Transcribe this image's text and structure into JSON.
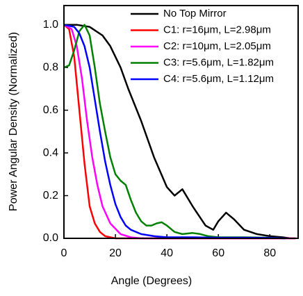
{
  "chart_data": {
    "type": "line",
    "xlabel": "Angle (Degrees)",
    "ylabel": "Power Angular Density (Normalized)",
    "xlim": [
      0,
      91
    ],
    "xticks": [
      0,
      20,
      40,
      60,
      80
    ],
    "ylim": [
      0,
      1.09
    ],
    "yticks": [
      {
        "value": 0,
        "label": "0.0"
      },
      0.2,
      0.4,
      0.6,
      0.8,
      {
        "value": 1,
        "label": "1.0"
      }
    ],
    "legend": "upper right",
    "series": [
      {
        "name": "No Top Mirror",
        "color": "#000000",
        "x": [
          0,
          5,
          10,
          15,
          18,
          22,
          25,
          30,
          35,
          40,
          43,
          46,
          50,
          55,
          58,
          60,
          63,
          66,
          70,
          75,
          80,
          85,
          88
        ],
        "values": [
          1.0,
          1.0,
          0.99,
          0.95,
          0.9,
          0.8,
          0.7,
          0.55,
          0.38,
          0.24,
          0.2,
          0.23,
          0.15,
          0.06,
          0.04,
          0.08,
          0.12,
          0.09,
          0.04,
          0.02,
          0.01,
          0.005,
          0
        ]
      },
      {
        "name": "C1: r=16μm, L=2.98μm",
        "color": "#ff0000",
        "x": [
          0,
          2,
          4,
          6,
          8,
          10,
          12,
          14,
          16,
          20,
          90
        ],
        "values": [
          1.0,
          0.98,
          0.85,
          0.6,
          0.35,
          0.15,
          0.07,
          0.03,
          0.01,
          0,
          0
        ]
      },
      {
        "name": "C2: r=10μm, L=2.05μm",
        "color": "#ff00ff",
        "x": [
          0,
          3,
          5,
          7,
          9,
          11,
          13,
          15,
          18,
          22,
          26,
          30,
          90
        ],
        "values": [
          1.0,
          0.98,
          0.9,
          0.75,
          0.55,
          0.38,
          0.25,
          0.15,
          0.07,
          0.02,
          0.005,
          0,
          0
        ]
      },
      {
        "name": "C3: r=5.6μm, L=1.82μm",
        "color": "#008000",
        "x": [
          0,
          2,
          4,
          6,
          8,
          10,
          12,
          14,
          16,
          18,
          20,
          22,
          24,
          26,
          28,
          30,
          32,
          34,
          36,
          38,
          40,
          43,
          46,
          50,
          53,
          56,
          60,
          70,
          80,
          86
        ],
        "values": [
          0.8,
          0.81,
          0.88,
          0.97,
          1.0,
          0.95,
          0.8,
          0.63,
          0.5,
          0.38,
          0.3,
          0.27,
          0.25,
          0.18,
          0.12,
          0.08,
          0.06,
          0.06,
          0.07,
          0.075,
          0.06,
          0.03,
          0.02,
          0.025,
          0.02,
          0.01,
          0.005,
          0.005,
          0.003,
          0
        ]
      },
      {
        "name": "C4: r=5.6μm, L=1.12μm",
        "color": "#0000ff",
        "x": [
          0,
          4,
          6,
          8,
          10,
          12,
          14,
          16,
          18,
          20,
          22,
          24,
          26,
          30,
          35,
          40,
          50,
          60,
          70,
          80,
          86
        ],
        "values": [
          1.0,
          0.99,
          0.96,
          0.9,
          0.8,
          0.65,
          0.5,
          0.36,
          0.25,
          0.16,
          0.1,
          0.06,
          0.04,
          0.02,
          0.01,
          0.005,
          0.005,
          0.003,
          0.003,
          0.002,
          0
        ]
      }
    ]
  }
}
